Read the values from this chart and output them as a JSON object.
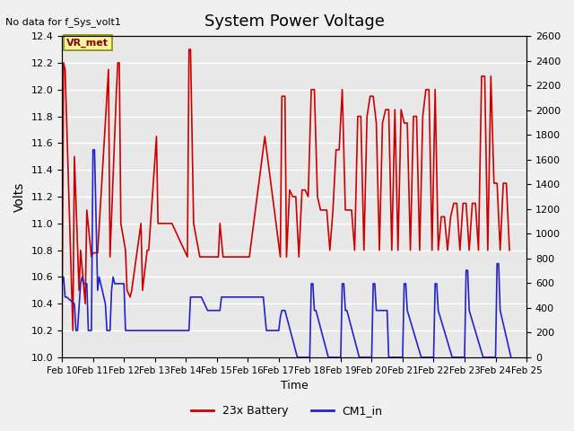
{
  "title": "System Power Voltage",
  "top_left_text": "No data for f_Sys_volt1",
  "ylabel_left": "Volts",
  "xlabel": "Time",
  "ylim_left": [
    10.0,
    12.4
  ],
  "ylim_right": [
    0,
    2600
  ],
  "yticks_left": [
    10.0,
    10.2,
    10.4,
    10.6,
    10.8,
    11.0,
    11.2,
    11.4,
    11.6,
    11.8,
    12.0,
    12.2,
    12.4
  ],
  "yticks_right": [
    0,
    200,
    400,
    600,
    800,
    1000,
    1200,
    1400,
    1600,
    1800,
    2000,
    2200,
    2400,
    2600
  ],
  "xtick_labels": [
    "Feb 10",
    "Feb 11",
    "Feb 12",
    "Feb 13",
    "Feb 14",
    "Feb 15",
    "Feb 16",
    "Feb 17",
    "Feb 18",
    "Feb 19",
    "Feb 20",
    "Feb 21",
    "Feb 22",
    "Feb 23",
    "Feb 24",
    "Feb 25"
  ],
  "background_color": "#e8e8e8",
  "grid_color": "#ffffff",
  "vr_met_label": "VR_met",
  "legend_entries": [
    "23x Battery",
    "CM1_in"
  ],
  "legend_colors": [
    "#cc0000",
    "#2222cc"
  ],
  "red_x": [
    10.0,
    10.05,
    10.1,
    10.35,
    10.4,
    10.55,
    10.6,
    10.75,
    10.8,
    10.95,
    11.0,
    11.1,
    11.15,
    11.5,
    11.55,
    11.75,
    11.8,
    11.85,
    11.9,
    12.05,
    12.1,
    12.2,
    12.25,
    12.55,
    12.6,
    12.75,
    12.8,
    13.05,
    13.1,
    13.2,
    13.25,
    13.5,
    13.55,
    14.05,
    14.1,
    14.15,
    14.25,
    14.45,
    14.5,
    15.05,
    15.1,
    15.2,
    16.05,
    16.55,
    17.05,
    17.1,
    17.2,
    17.25,
    17.35,
    17.45,
    17.55,
    17.65,
    17.75,
    17.85,
    17.95,
    18.05,
    18.15,
    18.25,
    18.35,
    18.45,
    18.55,
    18.65,
    18.75,
    18.85,
    18.95,
    19.05,
    19.15,
    19.25,
    19.35,
    19.45,
    19.55,
    19.65,
    19.75,
    19.85,
    19.95,
    20.05,
    20.15,
    20.25,
    20.35,
    20.45,
    20.55,
    20.65,
    20.75,
    20.85,
    20.95,
    21.05,
    21.15,
    21.25,
    21.35,
    21.45,
    21.55,
    21.65,
    21.75,
    21.85,
    21.95,
    22.05,
    22.15,
    22.25,
    22.35,
    22.45,
    22.55,
    22.65,
    22.75,
    22.85,
    22.95,
    23.05,
    23.15,
    23.25,
    23.35,
    23.45,
    23.55,
    23.65,
    23.75,
    23.85,
    23.95,
    24.05,
    24.15,
    24.25,
    24.35,
    24.45
  ],
  "red_y": [
    10.2,
    12.2,
    12.15,
    10.2,
    11.5,
    10.5,
    10.8,
    10.4,
    11.1,
    10.75,
    10.78,
    10.78,
    10.78,
    12.15,
    10.75,
    11.95,
    12.2,
    12.2,
    11.0,
    10.8,
    10.5,
    10.45,
    10.5,
    11.0,
    10.5,
    10.8,
    10.8,
    11.65,
    11.0,
    11.0,
    11.0,
    11.0,
    11.0,
    10.75,
    12.3,
    12.3,
    11.0,
    10.75,
    10.75,
    10.75,
    11.0,
    10.75,
    10.75,
    11.65,
    10.75,
    11.95,
    11.95,
    10.75,
    11.25,
    11.2,
    11.2,
    10.75,
    11.25,
    11.25,
    11.2,
    12.0,
    12.0,
    11.2,
    11.1,
    11.1,
    11.1,
    10.8,
    11.1,
    11.55,
    11.55,
    12.0,
    11.1,
    11.1,
    11.1,
    10.8,
    11.8,
    11.8,
    10.8,
    11.8,
    11.95,
    11.95,
    11.75,
    10.8,
    11.75,
    11.85,
    11.85,
    10.8,
    11.85,
    10.8,
    11.85,
    11.75,
    11.75,
    10.8,
    11.8,
    11.8,
    10.8,
    11.8,
    12.0,
    12.0,
    10.8,
    12.0,
    10.8,
    11.05,
    11.05,
    10.8,
    11.05,
    11.15,
    11.15,
    10.8,
    11.15,
    11.15,
    10.8,
    11.15,
    11.15,
    10.8,
    12.1,
    12.1,
    10.8,
    12.1,
    11.3,
    11.3,
    10.8,
    11.3,
    11.3,
    10.8
  ],
  "blue_x": [
    10.0,
    10.05,
    10.1,
    10.15,
    10.4,
    10.45,
    10.5,
    10.6,
    10.65,
    10.7,
    10.8,
    10.85,
    10.95,
    11.0,
    11.05,
    11.15,
    11.2,
    11.25,
    11.4,
    11.45,
    11.55,
    11.6,
    11.65,
    11.7,
    12.0,
    12.05,
    12.1,
    12.5,
    12.55,
    12.6,
    13.0,
    13.1,
    13.15,
    13.4,
    13.45,
    14.0,
    14.1,
    14.15,
    14.2,
    14.5,
    14.6,
    14.7,
    15.0,
    15.1,
    15.15,
    15.5,
    16.0,
    16.5,
    16.6,
    16.8,
    17.0,
    17.05,
    17.1,
    17.15,
    17.2,
    17.6,
    17.65,
    17.7,
    18.0,
    18.05,
    18.1,
    18.15,
    18.2,
    18.6,
    18.65,
    18.7,
    19.0,
    19.05,
    19.1,
    19.15,
    19.2,
    19.6,
    19.65,
    19.7,
    20.0,
    20.05,
    20.1,
    20.15,
    20.5,
    20.55,
    20.6,
    21.0,
    21.05,
    21.1,
    21.15,
    21.6,
    21.65,
    21.7,
    22.0,
    22.05,
    22.1,
    22.15,
    22.6,
    22.65,
    22.7,
    23.0,
    23.05,
    23.1,
    23.15,
    23.6,
    23.65,
    23.7,
    24.0,
    24.05,
    24.1,
    24.15,
    24.5
  ],
  "blue_y": [
    10.55,
    10.6,
    10.45,
    10.45,
    10.4,
    10.2,
    10.2,
    10.55,
    10.6,
    10.55,
    10.55,
    10.2,
    10.2,
    11.55,
    11.55,
    10.5,
    10.6,
    10.55,
    10.4,
    10.2,
    10.2,
    10.5,
    10.6,
    10.55,
    10.55,
    10.2,
    10.2,
    10.2,
    10.2,
    10.2,
    10.2,
    10.2,
    10.2,
    10.2,
    10.2,
    10.2,
    10.2,
    10.45,
    10.45,
    10.45,
    10.4,
    10.35,
    10.35,
    10.35,
    10.45,
    10.45,
    10.45,
    10.45,
    10.2,
    10.2,
    10.2,
    10.3,
    10.35,
    10.35,
    10.35,
    10.0,
    10.0,
    10.0,
    10.0,
    10.55,
    10.55,
    10.35,
    10.35,
    10.0,
    10.0,
    10.0,
    10.0,
    10.55,
    10.55,
    10.35,
    10.35,
    10.0,
    10.0,
    10.0,
    10.0,
    10.55,
    10.55,
    10.35,
    10.35,
    10.0,
    10.0,
    10.0,
    10.55,
    10.55,
    10.35,
    10.0,
    10.0,
    10.0,
    10.0,
    10.55,
    10.55,
    10.35,
    10.0,
    10.0,
    10.0,
    10.0,
    10.65,
    10.65,
    10.35,
    10.0,
    10.0,
    10.0,
    10.0,
    10.7,
    10.7,
    10.35,
    10.0
  ]
}
